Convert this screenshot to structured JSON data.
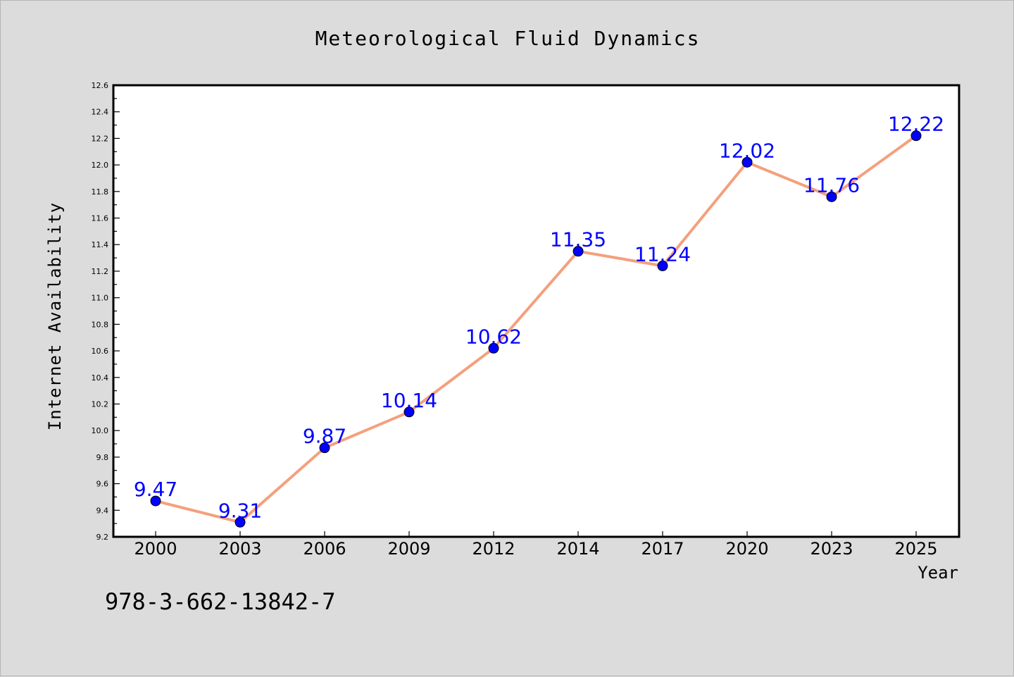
{
  "footer": {
    "isbn": "978-3-662-13842-7"
  },
  "chart_data": {
    "type": "line",
    "title": "Meteorological Fluid Dynamics",
    "xlabel": "Year",
    "ylabel": "Internet Availability",
    "categories": [
      "2000",
      "2003",
      "2006",
      "2009",
      "2012",
      "2014",
      "2017",
      "2020",
      "2023",
      "2025"
    ],
    "series": [
      {
        "values": [
          9.47,
          9.31,
          9.87,
          10.14,
          10.62,
          11.35,
          11.24,
          12.02,
          11.76,
          12.22
        ]
      }
    ],
    "data_labels": [
      "9.47",
      "9.31",
      "9.87",
      "10.14",
      "10.62",
      "11.35",
      "11.24",
      "12.02",
      "11.76",
      "12.22"
    ],
    "ylim": [
      9.2,
      12.6
    ],
    "yticks": [
      "9.2",
      "9.4",
      "9.6",
      "9.8",
      "10.0",
      "10.2",
      "10.4",
      "10.6",
      "10.8",
      "11.0",
      "11.2",
      "11.4",
      "11.6",
      "11.8",
      "12.0",
      "12.2",
      "12.4",
      "12.6"
    ],
    "grid": false,
    "legend": "none",
    "colors": {
      "line": "#f4a07e",
      "marker": "#0000ff",
      "label": "#0000ff",
      "axis": "#000000",
      "plot_bg": "#ffffff",
      "page_bg": "#dcdcdc"
    }
  }
}
